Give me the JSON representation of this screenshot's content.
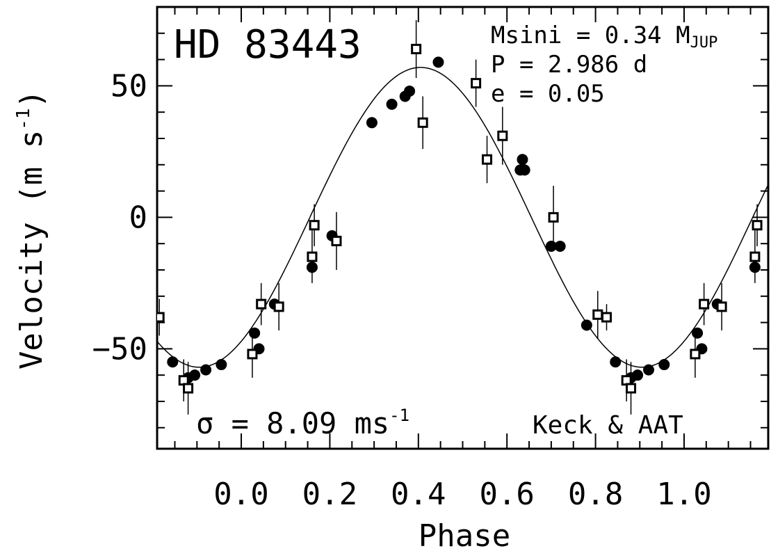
{
  "chart_data": {
    "type": "scatter",
    "title": "HD 83443",
    "xlabel": "Phase",
    "ylabel": "Velocity (m s",
    "ylabel_sup": "-1",
    "ylabel_close": ")",
    "xlim": [
      -0.19,
      1.19
    ],
    "ylim": [
      -88,
      80
    ],
    "x_ticks": [
      0.0,
      0.2,
      0.4,
      0.6,
      0.8,
      1.0
    ],
    "x_tick_labels": [
      "0.0",
      "0.2",
      "0.4",
      "0.6",
      "0.8",
      "1.0"
    ],
    "y_ticks": [
      -50,
      0,
      50
    ],
    "y_tick_labels": [
      "−50",
      "0",
      "50"
    ],
    "annotations": {
      "msini_label": "Msini = 0.34 M",
      "msini_sub": "JUP",
      "period": "P = 2.986 d",
      "ecc": "e = 0.05",
      "sigma_label": "σ = 8.09 ms",
      "sigma_sup": "-1",
      "source": "Keck & AAT"
    },
    "fit": {
      "amplitude": 57,
      "phase_of_min": -0.095,
      "period_phase": 1.0
    },
    "series": [
      {
        "marker": "filled-circle",
        "points": [
          {
            "x": -0.155,
            "y": -55
          },
          {
            "x": -0.12,
            "y": -61
          },
          {
            "x": -0.105,
            "y": -60
          },
          {
            "x": -0.08,
            "y": -58
          },
          {
            "x": -0.045,
            "y": -56
          },
          {
            "x": 0.03,
            "y": -44
          },
          {
            "x": 0.04,
            "y": -50
          },
          {
            "x": 0.075,
            "y": -33
          },
          {
            "x": 0.16,
            "y": -19
          },
          {
            "x": 0.205,
            "y": -7
          },
          {
            "x": 0.295,
            "y": 36
          },
          {
            "x": 0.34,
            "y": 43
          },
          {
            "x": 0.37,
            "y": 46
          },
          {
            "x": 0.38,
            "y": 48
          },
          {
            "x": 0.445,
            "y": 59
          },
          {
            "x": 0.63,
            "y": 18
          },
          {
            "x": 0.635,
            "y": 22
          },
          {
            "x": 0.64,
            "y": 18
          },
          {
            "x": 0.7,
            "y": -11
          },
          {
            "x": 0.72,
            "y": -11
          },
          {
            "x": 0.78,
            "y": -41
          },
          {
            "x": 0.845,
            "y": -55
          },
          {
            "x": 0.88,
            "y": -61
          },
          {
            "x": 0.895,
            "y": -60
          },
          {
            "x": 0.92,
            "y": -58
          },
          {
            "x": 0.955,
            "y": -56
          },
          {
            "x": 1.03,
            "y": -44
          },
          {
            "x": 1.04,
            "y": -50
          },
          {
            "x": 1.075,
            "y": -33
          },
          {
            "x": 1.16,
            "y": -19
          }
        ]
      },
      {
        "marker": "open-square",
        "points": [
          {
            "x": -0.185,
            "y": -38,
            "err": 7
          },
          {
            "x": -0.13,
            "y": -62,
            "err": 8
          },
          {
            "x": -0.12,
            "y": -65,
            "err": 10
          },
          {
            "x": 0.025,
            "y": -52,
            "err": 9
          },
          {
            "x": 0.045,
            "y": -33,
            "err": 8
          },
          {
            "x": 0.085,
            "y": -34,
            "err": 9
          },
          {
            "x": 0.16,
            "y": -15,
            "err": 10
          },
          {
            "x": 0.165,
            "y": -3,
            "err": 8
          },
          {
            "x": 0.215,
            "y": -9,
            "err": 11
          },
          {
            "x": 0.395,
            "y": 64,
            "err": 11
          },
          {
            "x": 0.41,
            "y": 36,
            "err": 10
          },
          {
            "x": 0.53,
            "y": 51,
            "err": 9
          },
          {
            "x": 0.555,
            "y": 22,
            "err": 9
          },
          {
            "x": 0.59,
            "y": 31,
            "err": 11
          },
          {
            "x": 0.705,
            "y": 0,
            "err": 12
          },
          {
            "x": 0.805,
            "y": -37,
            "err": 9
          },
          {
            "x": 0.825,
            "y": -38,
            "err": 5
          },
          {
            "x": 0.87,
            "y": -62,
            "err": 8
          },
          {
            "x": 0.88,
            "y": -65,
            "err": 10
          },
          {
            "x": 1.025,
            "y": -52,
            "err": 9
          },
          {
            "x": 1.045,
            "y": -33,
            "err": 8
          },
          {
            "x": 1.085,
            "y": -34,
            "err": 9
          },
          {
            "x": 1.16,
            "y": -15,
            "err": 10
          },
          {
            "x": 1.165,
            "y": -3,
            "err": 8
          }
        ]
      }
    ]
  }
}
